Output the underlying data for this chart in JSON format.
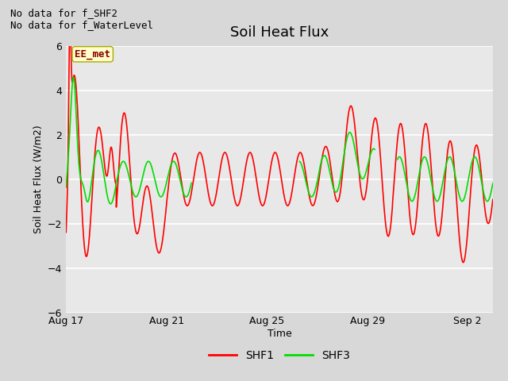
{
  "title": "Soil Heat Flux",
  "xlabel": "Time",
  "ylabel": "Soil Heat Flux (W/m2)",
  "ylim": [
    -6,
    6
  ],
  "yticks": [
    -6,
    -4,
    -2,
    0,
    2,
    4,
    6
  ],
  "x_tick_labels": [
    "Aug 17",
    "Aug 21",
    "Aug 25",
    "Aug 29",
    "Sep 2"
  ],
  "x_tick_positions": [
    0,
    4,
    8,
    12,
    16
  ],
  "xlim": [
    0,
    17
  ],
  "plot_bg_color": "#e8e8e8",
  "fig_bg_color": "#d8d8d8",
  "grid_color": "#ffffff",
  "shf1_color": "#ff0000",
  "shf3_color": "#00dd00",
  "line_width": 1.2,
  "annotation_text": "No data for f_SHF2\nNo data for f_WaterLevel",
  "ee_met_label": "EE_met",
  "legend_labels": [
    "SHF1",
    "SHF3"
  ],
  "title_fontsize": 13,
  "label_fontsize": 9,
  "tick_fontsize": 9,
  "annot_fontsize": 9
}
